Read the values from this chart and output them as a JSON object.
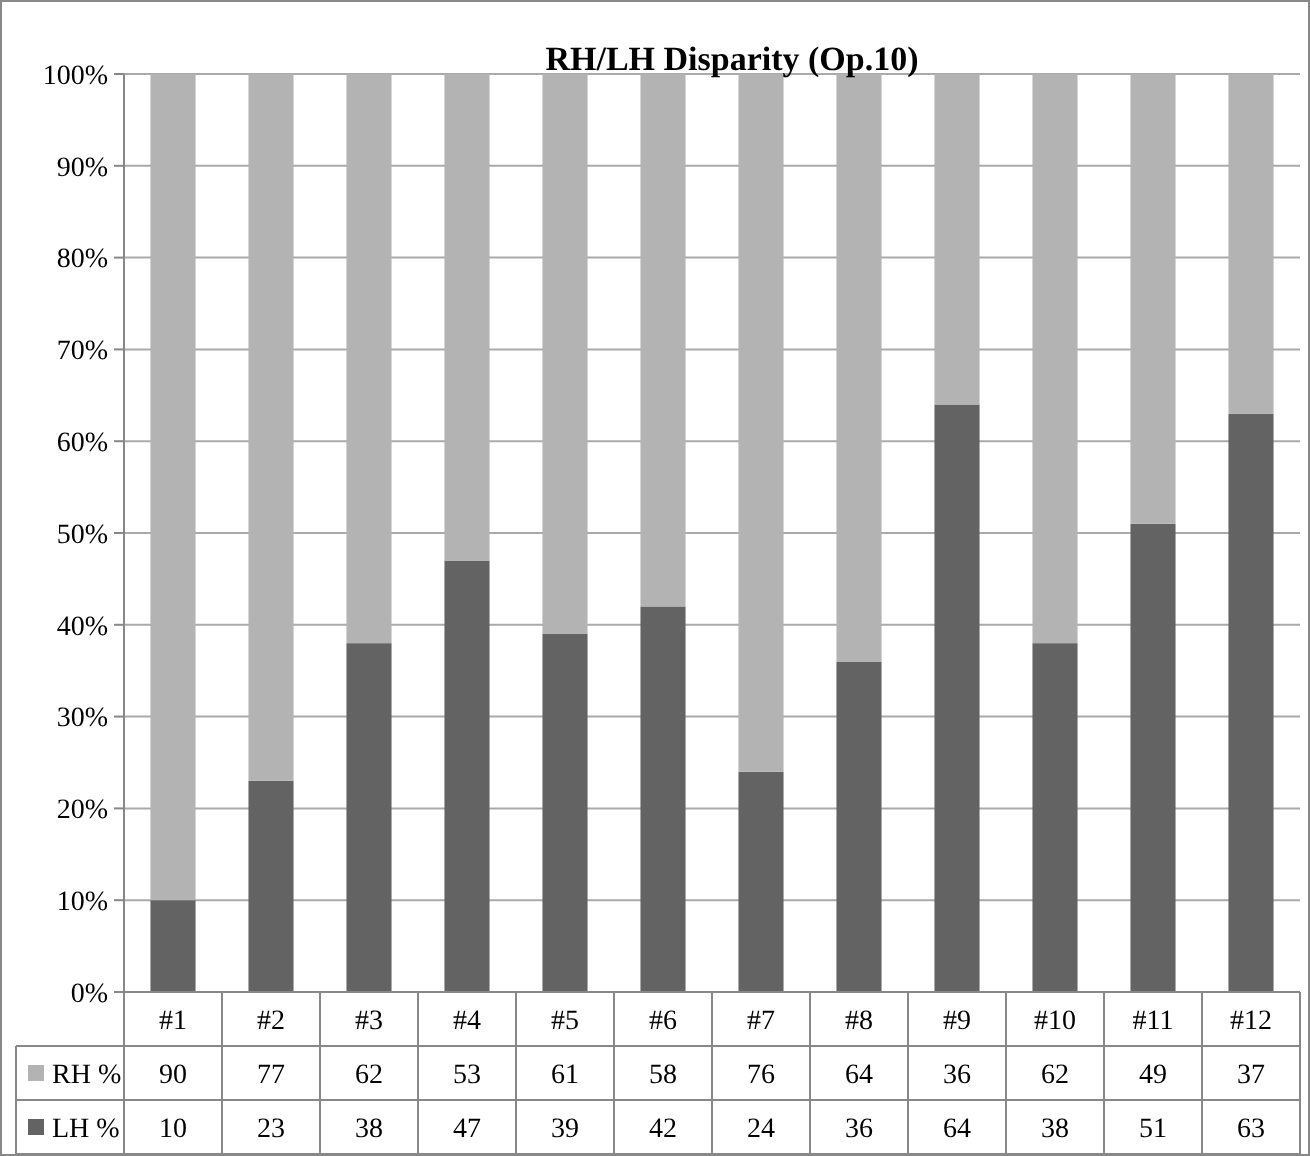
{
  "chart_data": {
    "type": "bar",
    "title": "RH/LH Disparity (Op.10)",
    "categories": [
      "#1",
      "#2",
      "#3",
      "#4",
      "#5",
      "#6",
      "#7",
      "#8",
      "#9",
      "#10",
      "#11",
      "#12"
    ],
    "stacked": true,
    "data_labels": true,
    "grid": "y",
    "legend": "bottom",
    "ylim": [
      0,
      100
    ],
    "yticks": [
      {
        "value": 0,
        "label": "0%"
      },
      {
        "value": 10,
        "label": "10%"
      },
      {
        "value": 20,
        "label": "20%"
      },
      {
        "value": 30,
        "label": "30%"
      },
      {
        "value": 40,
        "label": "40%"
      },
      {
        "value": 50,
        "label": "50%"
      },
      {
        "value": 60,
        "label": "60%"
      },
      {
        "value": 70,
        "label": "70%"
      },
      {
        "value": 80,
        "label": "80%"
      },
      {
        "value": 90,
        "label": "90%"
      },
      {
        "value": 100,
        "label": "100%"
      }
    ],
    "series": [
      {
        "name": "LH %",
        "color": "#636363",
        "values": [
          10,
          23,
          38,
          47,
          39,
          42,
          24,
          36,
          64,
          38,
          51,
          63
        ]
      },
      {
        "name": "RH %",
        "color": "#b3b3b3",
        "values": [
          90,
          77,
          62,
          53,
          61,
          58,
          76,
          64,
          36,
          62,
          49,
          37
        ]
      }
    ]
  }
}
